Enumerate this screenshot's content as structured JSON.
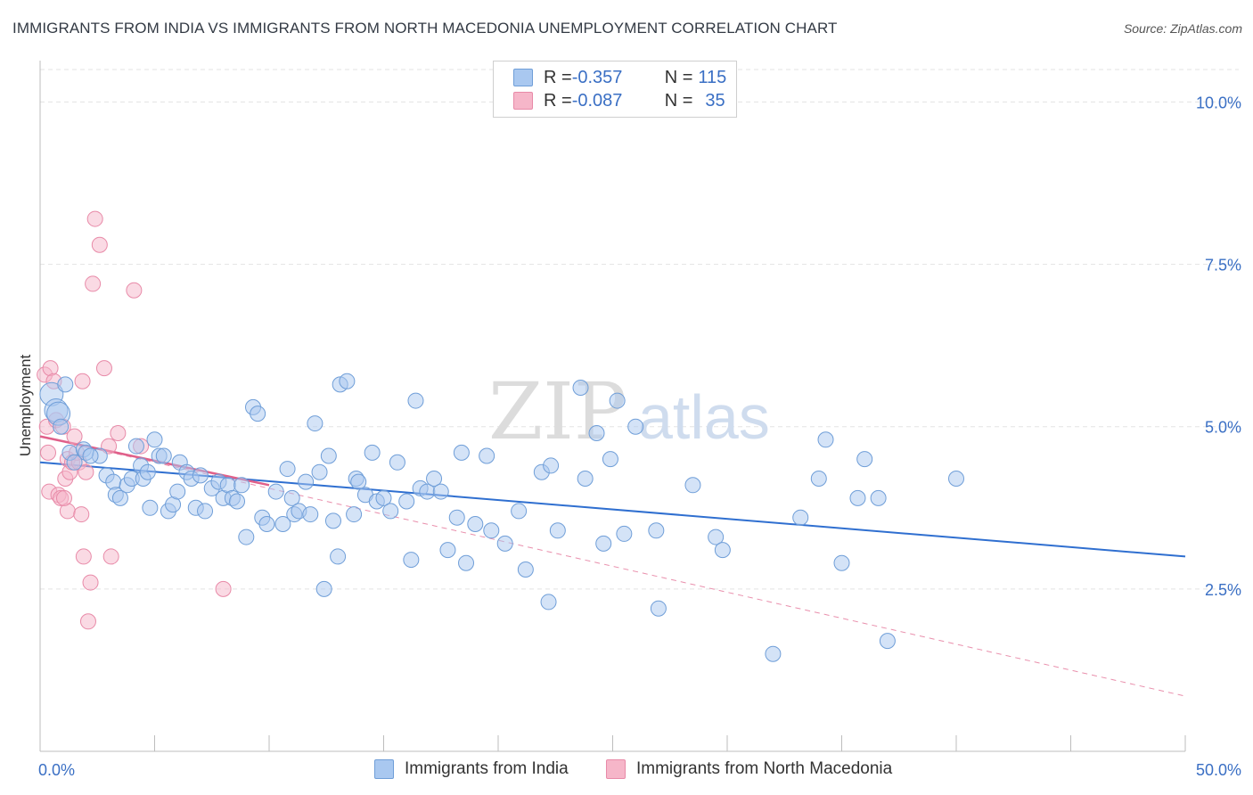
{
  "title": "IMMIGRANTS FROM INDIA VS IMMIGRANTS FROM NORTH MACEDONIA UNEMPLOYMENT CORRELATION CHART",
  "source": "Source: ZipAtlas.com",
  "watermark": {
    "zip": "ZIP",
    "atlas": "atlas"
  },
  "legend": {
    "rows": [
      {
        "r_label": "R = ",
        "r_value": "-0.357",
        "n_label": "N = ",
        "n_value": "115",
        "color": "#a9c8f0"
      },
      {
        "r_label": "R = ",
        "r_value": "-0.087",
        "n_label": "N = ",
        "n_value": "35",
        "color": "#f6b6c9"
      }
    ]
  },
  "bottom_legend": [
    "Immigrants from India",
    "Immigrants from North Macedonia"
  ],
  "colors": {
    "india_fill": "#a9c8f0",
    "india_stroke": "#6f9ed8",
    "india_line": "#2f6fd0",
    "nm_fill": "#f6b6c9",
    "nm_stroke": "#e88aa8",
    "nm_line": "#e0608a",
    "axis_text": "#3a6fc4",
    "grid": "#e3e3e3"
  },
  "chart_data": {
    "type": "scatter",
    "title": "IMMIGRANTS FROM INDIA VS IMMIGRANTS FROM NORTH MACEDONIA UNEMPLOYMENT CORRELATION CHART",
    "xlabel": "",
    "ylabel": "Unemployment",
    "xlim": [
      0,
      50
    ],
    "ylim": [
      0,
      10.5
    ],
    "x_tick_labels": [
      "0.0%",
      "50.0%"
    ],
    "y_ticks": [
      2.5,
      5.0,
      7.5,
      10.0
    ],
    "y_tick_labels": [
      "2.5%",
      "5.0%",
      "7.5%",
      "10.0%"
    ],
    "grid": true,
    "series": [
      {
        "name": "Immigrants from India",
        "r": -0.357,
        "n": 115,
        "trend": {
          "x": [
            0,
            50
          ],
          "y": [
            4.45,
            3.0
          ]
        },
        "points": [
          [
            0.5,
            5.5
          ],
          [
            0.7,
            5.25
          ],
          [
            0.8,
            5.2
          ],
          [
            1.1,
            5.65
          ],
          [
            0.9,
            5.0
          ],
          [
            1.3,
            4.6
          ],
          [
            1.5,
            4.45
          ],
          [
            1.9,
            4.65
          ],
          [
            2.6,
            4.55
          ],
          [
            2.9,
            4.25
          ],
          [
            3.2,
            4.15
          ],
          [
            3.3,
            3.95
          ],
          [
            3.5,
            3.9
          ],
          [
            3.8,
            4.1
          ],
          [
            4.0,
            4.2
          ],
          [
            4.2,
            4.7
          ],
          [
            4.4,
            4.4
          ],
          [
            4.5,
            4.2
          ],
          [
            4.7,
            4.3
          ],
          [
            4.8,
            3.75
          ],
          [
            5.0,
            4.8
          ],
          [
            5.2,
            4.55
          ],
          [
            5.4,
            4.55
          ],
          [
            5.6,
            3.7
          ],
          [
            5.8,
            3.8
          ],
          [
            6.0,
            4.0
          ],
          [
            6.1,
            4.45
          ],
          [
            6.4,
            4.3
          ],
          [
            6.6,
            4.2
          ],
          [
            6.8,
            3.75
          ],
          [
            7.0,
            4.25
          ],
          [
            7.2,
            3.7
          ],
          [
            7.5,
            4.05
          ],
          [
            7.8,
            4.15
          ],
          [
            8.0,
            3.9
          ],
          [
            8.2,
            4.1
          ],
          [
            8.4,
            3.9
          ],
          [
            8.6,
            3.85
          ],
          [
            8.8,
            4.1
          ],
          [
            9.0,
            3.3
          ],
          [
            9.3,
            5.3
          ],
          [
            9.5,
            5.2
          ],
          [
            9.7,
            3.6
          ],
          [
            9.9,
            3.5
          ],
          [
            10.3,
            4.0
          ],
          [
            10.6,
            3.5
          ],
          [
            10.8,
            4.35
          ],
          [
            11.0,
            3.9
          ],
          [
            11.1,
            3.65
          ],
          [
            11.3,
            3.7
          ],
          [
            11.6,
            4.15
          ],
          [
            11.8,
            3.65
          ],
          [
            12.0,
            5.05
          ],
          [
            12.4,
            2.5
          ],
          [
            12.6,
            4.55
          ],
          [
            12.8,
            3.55
          ],
          [
            13.0,
            3.0
          ],
          [
            13.1,
            5.65
          ],
          [
            13.4,
            5.7
          ],
          [
            13.7,
            3.65
          ],
          [
            13.8,
            4.2
          ],
          [
            13.9,
            4.15
          ],
          [
            14.2,
            3.95
          ],
          [
            14.5,
            4.6
          ],
          [
            14.7,
            3.85
          ],
          [
            15.0,
            3.9
          ],
          [
            15.3,
            3.7
          ],
          [
            15.6,
            4.45
          ],
          [
            16.0,
            3.85
          ],
          [
            16.2,
            2.95
          ],
          [
            16.4,
            5.4
          ],
          [
            16.6,
            4.05
          ],
          [
            16.9,
            4.0
          ],
          [
            17.2,
            4.2
          ],
          [
            17.5,
            4.0
          ],
          [
            17.8,
            3.1
          ],
          [
            18.2,
            3.6
          ],
          [
            18.4,
            4.6
          ],
          [
            18.6,
            2.9
          ],
          [
            19.0,
            3.5
          ],
          [
            19.5,
            4.55
          ],
          [
            19.7,
            3.4
          ],
          [
            20.3,
            3.2
          ],
          [
            20.9,
            3.7
          ],
          [
            21.2,
            2.8
          ],
          [
            21.9,
            4.3
          ],
          [
            22.2,
            2.3
          ],
          [
            22.3,
            4.4
          ],
          [
            22.6,
            3.4
          ],
          [
            23.6,
            5.6
          ],
          [
            23.8,
            4.2
          ],
          [
            24.3,
            4.9
          ],
          [
            24.6,
            3.2
          ],
          [
            24.9,
            4.5
          ],
          [
            25.2,
            5.4
          ],
          [
            25.5,
            3.35
          ],
          [
            26.0,
            5.0
          ],
          [
            26.9,
            3.4
          ],
          [
            27.0,
            2.2
          ],
          [
            28.5,
            4.1
          ],
          [
            29.5,
            3.3
          ],
          [
            29.8,
            3.1
          ],
          [
            32.0,
            1.5
          ],
          [
            33.2,
            3.6
          ],
          [
            34.0,
            4.2
          ],
          [
            34.3,
            4.8
          ],
          [
            35.0,
            2.9
          ],
          [
            35.7,
            3.9
          ],
          [
            36.0,
            4.5
          ],
          [
            36.6,
            3.9
          ],
          [
            37.0,
            1.7
          ],
          [
            40.0,
            4.2
          ],
          [
            2.0,
            4.6
          ],
          [
            2.2,
            4.55
          ],
          [
            12.2,
            4.3
          ]
        ]
      },
      {
        "name": "Immigrants from North Macedonia",
        "r": -0.087,
        "n": 35,
        "trend": {
          "x": [
            0,
            10
          ],
          "y": [
            4.85,
            4.1
          ]
        },
        "trend_ext": {
          "x": [
            0,
            50
          ],
          "y": [
            4.85,
            0.85
          ]
        },
        "points": [
          [
            0.2,
            5.8
          ],
          [
            0.3,
            5.0
          ],
          [
            0.35,
            4.6
          ],
          [
            0.4,
            4.0
          ],
          [
            0.45,
            5.9
          ],
          [
            0.6,
            5.7
          ],
          [
            0.7,
            5.1
          ],
          [
            0.8,
            3.95
          ],
          [
            0.9,
            3.9
          ],
          [
            1.0,
            5.0
          ],
          [
            1.1,
            4.2
          ],
          [
            1.2,
            4.5
          ],
          [
            1.2,
            3.7
          ],
          [
            1.3,
            4.3
          ],
          [
            1.4,
            4.45
          ],
          [
            1.5,
            4.85
          ],
          [
            1.6,
            4.6
          ],
          [
            1.7,
            4.45
          ],
          [
            1.8,
            3.65
          ],
          [
            1.85,
            5.7
          ],
          [
            1.9,
            3.0
          ],
          [
            2.0,
            4.3
          ],
          [
            2.1,
            2.0
          ],
          [
            2.2,
            2.6
          ],
          [
            2.3,
            7.2
          ],
          [
            2.4,
            8.2
          ],
          [
            2.6,
            7.8
          ],
          [
            2.8,
            5.9
          ],
          [
            3.0,
            4.7
          ],
          [
            3.1,
            3.0
          ],
          [
            3.4,
            4.9
          ],
          [
            4.1,
            7.1
          ],
          [
            4.4,
            4.7
          ],
          [
            8.0,
            2.5
          ],
          [
            1.05,
            3.9
          ]
        ]
      }
    ]
  }
}
